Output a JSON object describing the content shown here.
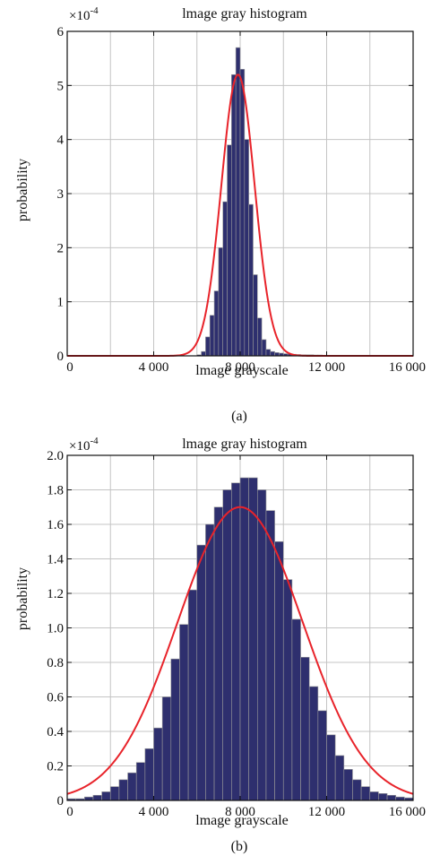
{
  "chart_data": [
    {
      "type": "bar",
      "title": "lmage gray histogram",
      "xlabel": "lmage grayscale",
      "ylabel": "probability",
      "y_multiplier": "×10",
      "y_multiplier_exp": "-4",
      "subcaption": "(a)",
      "xlim": [
        0,
        16000
      ],
      "ylim": [
        0,
        6
      ],
      "x_ticks": [
        0,
        4000,
        8000,
        12000,
        16000
      ],
      "x_tick_labels": [
        "0",
        "4 000",
        "8 000",
        "12 000",
        "16 000"
      ],
      "y_ticks": [
        0,
        1,
        2,
        3,
        4,
        5,
        6
      ],
      "y_tick_labels": [
        "0",
        "1",
        "2",
        "3",
        "4",
        "5",
        "6"
      ],
      "grid": true,
      "bin_width": 200,
      "bin_left_edges": [
        6000,
        6200,
        6400,
        6600,
        6800,
        7000,
        7200,
        7400,
        7600,
        7800,
        8000,
        8200,
        8400,
        8600,
        8800,
        9000,
        9200,
        9400,
        9600,
        9800,
        10000,
        10200,
        10400,
        10600,
        10800,
        11000,
        11200,
        11400,
        11600,
        11800,
        12000,
        12200,
        12400,
        12600,
        12800,
        13000,
        13200,
        13400,
        13600,
        13800,
        14000,
        14200,
        14400,
        14600,
        14800,
        15000
      ],
      "values": [
        0.02,
        0.08,
        0.35,
        0.75,
        1.2,
        2.0,
        2.85,
        3.9,
        5.2,
        5.7,
        5.3,
        4.0,
        2.8,
        1.5,
        0.7,
        0.3,
        0.12,
        0.08,
        0.06,
        0.05,
        0.04,
        0.035,
        0.03,
        0.025,
        0.02,
        0.02,
        0.02,
        0.015,
        0.015,
        0.01,
        0.01,
        0.01,
        0.01,
        0.01,
        0.01,
        0.01,
        0.008,
        0.008,
        0.006,
        0.006,
        0.005,
        0.004,
        0.004,
        0.003,
        0.003,
        0.002
      ],
      "fit": {
        "type": "normal",
        "mean": 7900,
        "sd": 770,
        "peak": 5.2
      },
      "colors": {
        "bar": "#2e2f6e",
        "fit": "#e8232a"
      }
    },
    {
      "type": "bar",
      "title": "lmage gray histogram",
      "xlabel": "lmage grayscale",
      "ylabel": "probability",
      "y_multiplier": "×10",
      "y_multiplier_exp": "-4",
      "subcaption": "(b)",
      "xlim": [
        0,
        16000
      ],
      "ylim": [
        0,
        2.0
      ],
      "x_ticks": [
        0,
        4000,
        8000,
        12000,
        16000
      ],
      "x_tick_labels": [
        "0",
        "4 000",
        "8 000",
        "12 000",
        "16 000"
      ],
      "y_ticks": [
        0,
        0.2,
        0.4,
        0.6,
        0.8,
        1.0,
        1.2,
        1.4,
        1.6,
        1.8,
        2.0
      ],
      "y_tick_labels": [
        "0",
        "0.2",
        "0.4",
        "0.6",
        "0.8",
        "1.0",
        "1.2",
        "1.4",
        "1.6",
        "1.8",
        "2.0"
      ],
      "grid": true,
      "bin_width": 400,
      "bin_left_edges": [
        0,
        400,
        800,
        1200,
        1600,
        2000,
        2400,
        2800,
        3200,
        3600,
        4000,
        4400,
        4800,
        5200,
        5600,
        6000,
        6400,
        6800,
        7200,
        7600,
        8000,
        8400,
        8800,
        9200,
        9600,
        10000,
        10400,
        10800,
        11200,
        11600,
        12000,
        12400,
        12800,
        13200,
        13600,
        14000,
        14400,
        14800,
        15200,
        15600
      ],
      "values": [
        0.01,
        0.01,
        0.02,
        0.03,
        0.05,
        0.08,
        0.12,
        0.16,
        0.22,
        0.3,
        0.42,
        0.6,
        0.82,
        1.02,
        1.22,
        1.48,
        1.6,
        1.7,
        1.8,
        1.84,
        1.87,
        1.87,
        1.8,
        1.68,
        1.5,
        1.28,
        1.05,
        0.83,
        0.66,
        0.52,
        0.38,
        0.26,
        0.18,
        0.12,
        0.08,
        0.05,
        0.04,
        0.03,
        0.02,
        0.015
      ],
      "fit": {
        "type": "normal",
        "mean": 8000,
        "sd": 2900,
        "peak": 1.7
      },
      "colors": {
        "bar": "#2e2f6e",
        "fit": "#e8232a"
      }
    }
  ]
}
